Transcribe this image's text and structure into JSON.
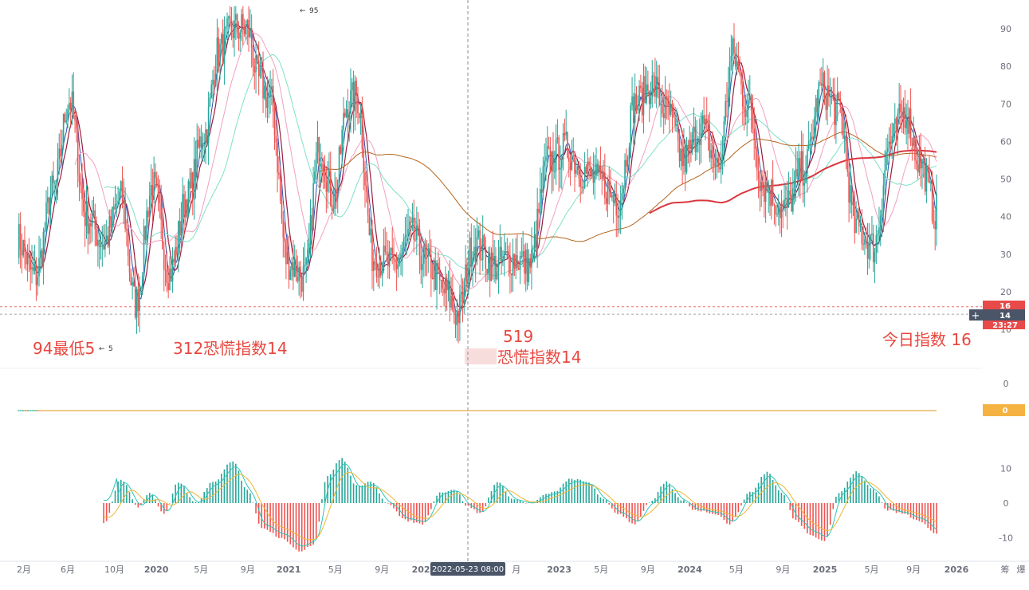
{
  "chart_data": {
    "type": "bar",
    "main_panel": {
      "y_ticks": [
        "90",
        "80",
        "70",
        "60",
        "50",
        "40",
        "30",
        "20",
        "10"
      ],
      "ylim": [
        10,
        95
      ],
      "price_tags": [
        {
          "label": "16",
          "value": 16,
          "color": "#e84a4a"
        },
        {
          "label": "14",
          "value": 14,
          "color": "#4a5568"
        },
        {
          "label": "23:27",
          "value": 11.5,
          "color": "#e84a4a"
        }
      ],
      "annotations": [
        {
          "id": "low-94",
          "text": "94最低5"
        },
        {
          "id": "low-312",
          "text": "312恐慌指数14"
        },
        {
          "id": "low-519-date",
          "text": "519"
        },
        {
          "id": "low-519",
          "text": "恐慌指数14"
        },
        {
          "id": "today",
          "text": "今日指数 16"
        }
      ],
      "markers": [
        {
          "id": "high",
          "text": "95",
          "value": 95
        },
        {
          "id": "low",
          "text": "5",
          "value": 5
        }
      ],
      "ma_colors": {
        "ma1": "#2f4fb0",
        "ma2": "#9b1b3a",
        "ma3": "#f2a0c0",
        "ma4": "#7fe0c9",
        "ma5": "#b5651d",
        "ma6": "#d9363e"
      },
      "candle_up": "#26a69a",
      "candle_down": "#ef5350",
      "anchor_points": [
        [
          0,
          34
        ],
        [
          12,
          24
        ],
        [
          25,
          47
        ],
        [
          36,
          71
        ],
        [
          48,
          40
        ],
        [
          60,
          33
        ],
        [
          72,
          45
        ],
        [
          82,
          17
        ],
        [
          94,
          48
        ],
        [
          106,
          25
        ],
        [
          118,
          45
        ],
        [
          130,
          62
        ],
        [
          140,
          84
        ],
        [
          150,
          90
        ],
        [
          160,
          90
        ],
        [
          168,
          76
        ],
        [
          176,
          71
        ],
        [
          188,
          28
        ],
        [
          200,
          24
        ],
        [
          210,
          58
        ],
        [
          220,
          45
        ],
        [
          230,
          70
        ],
        [
          236,
          72
        ],
        [
          248,
          29
        ],
        [
          262,
          27
        ],
        [
          274,
          35
        ],
        [
          286,
          27
        ],
        [
          298,
          20
        ],
        [
          306,
          14
        ],
        [
          318,
          33
        ],
        [
          332,
          27
        ],
        [
          346,
          29
        ],
        [
          356,
          27
        ],
        [
          370,
          55
        ],
        [
          382,
          58
        ],
        [
          394,
          52
        ],
        [
          406,
          49
        ],
        [
          418,
          44
        ],
        [
          430,
          70
        ],
        [
          442,
          75
        ],
        [
          452,
          68
        ],
        [
          464,
          55
        ],
        [
          476,
          64
        ],
        [
          488,
          53
        ],
        [
          498,
          83
        ],
        [
          508,
          70
        ],
        [
          520,
          48
        ],
        [
          534,
          42
        ],
        [
          548,
          53
        ],
        [
          560,
          74
        ],
        [
          572,
          68
        ],
        [
          584,
          37
        ],
        [
          596,
          32
        ],
        [
          608,
          60
        ],
        [
          618,
          68
        ],
        [
          628,
          55
        ],
        [
          640,
          41
        ]
      ]
    },
    "mid_panel": {
      "y_ticks": [
        "0"
      ],
      "value": 0,
      "tag": {
        "label": "0",
        "color": "#f5b342"
      },
      "line_color": "#e8a84a"
    },
    "macd_panel": {
      "y_ticks": [
        "10",
        "0",
        "-10"
      ],
      "ylim": [
        -15,
        15
      ],
      "hist_up": "#26a69a",
      "hist_down": "#ef5350",
      "line1_color": "#2ec4b6",
      "line2_color": "#f2b530",
      "anchor_points": [
        [
          0,
          9
        ],
        [
          6,
          -4
        ],
        [
          12,
          -7
        ],
        [
          20,
          1
        ],
        [
          28,
          -3
        ],
        [
          38,
          6
        ],
        [
          48,
          -4
        ],
        [
          60,
          -6
        ],
        [
          72,
          7
        ],
        [
          84,
          -1
        ],
        [
          92,
          3
        ],
        [
          102,
          -3
        ],
        [
          112,
          6
        ],
        [
          124,
          0
        ],
        [
          136,
          6
        ],
        [
          150,
          12
        ],
        [
          160,
          4
        ],
        [
          170,
          -7
        ],
        [
          184,
          -10
        ],
        [
          196,
          -14
        ],
        [
          206,
          -12
        ],
        [
          216,
          8
        ],
        [
          226,
          13
        ],
        [
          236,
          5
        ],
        [
          246,
          6
        ],
        [
          258,
          0
        ],
        [
          270,
          -5
        ],
        [
          282,
          -6
        ],
        [
          294,
          3
        ],
        [
          304,
          4
        ],
        [
          314,
          -1
        ],
        [
          322,
          -3
        ],
        [
          334,
          6
        ],
        [
          346,
          1
        ],
        [
          356,
          0
        ],
        [
          372,
          3
        ],
        [
          386,
          7
        ],
        [
          398,
          6
        ],
        [
          408,
          1
        ],
        [
          418,
          -3
        ],
        [
          430,
          -6
        ],
        [
          440,
          0
        ],
        [
          452,
          6
        ],
        [
          462,
          1
        ],
        [
          472,
          -2
        ],
        [
          486,
          -3
        ],
        [
          496,
          -6
        ],
        [
          510,
          3
        ],
        [
          522,
          9
        ],
        [
          532,
          3
        ],
        [
          542,
          -5
        ],
        [
          552,
          -9
        ],
        [
          562,
          -11
        ],
        [
          572,
          3
        ],
        [
          584,
          9
        ],
        [
          596,
          4
        ],
        [
          606,
          -2
        ],
        [
          616,
          -3
        ],
        [
          628,
          -5
        ],
        [
          640,
          -9
        ]
      ]
    },
    "x_axis": {
      "labels": [
        {
          "text": "2月",
          "pos": 0.0
        },
        {
          "text": "6月",
          "pos": 0.047
        },
        {
          "text": "10月",
          "pos": 0.097
        },
        {
          "text": "2020",
          "pos": 0.142
        },
        {
          "text": "5月",
          "pos": 0.19
        },
        {
          "text": "9月",
          "pos": 0.24
        },
        {
          "text": "2021",
          "pos": 0.284
        },
        {
          "text": "5月",
          "pos": 0.334
        },
        {
          "text": "9月",
          "pos": 0.384
        },
        {
          "text": "2022",
          "pos": 0.429
        },
        {
          "text": "月",
          "pos": 0.528
        },
        {
          "text": "2023",
          "pos": 0.574
        },
        {
          "text": "5月",
          "pos": 0.619
        },
        {
          "text": "9月",
          "pos": 0.669
        },
        {
          "text": "2024",
          "pos": 0.714
        },
        {
          "text": "5月",
          "pos": 0.764
        },
        {
          "text": "9月",
          "pos": 0.814
        },
        {
          "text": "2025",
          "pos": 0.859
        },
        {
          "text": "5月",
          "pos": 0.909
        },
        {
          "text": "9月",
          "pos": 0.954
        },
        {
          "text": "2026",
          "pos": 1.0
        }
      ],
      "crosshair_label": "2022-05-23 08:00",
      "corner_labels": [
        "筹",
        "爆"
      ]
    }
  }
}
